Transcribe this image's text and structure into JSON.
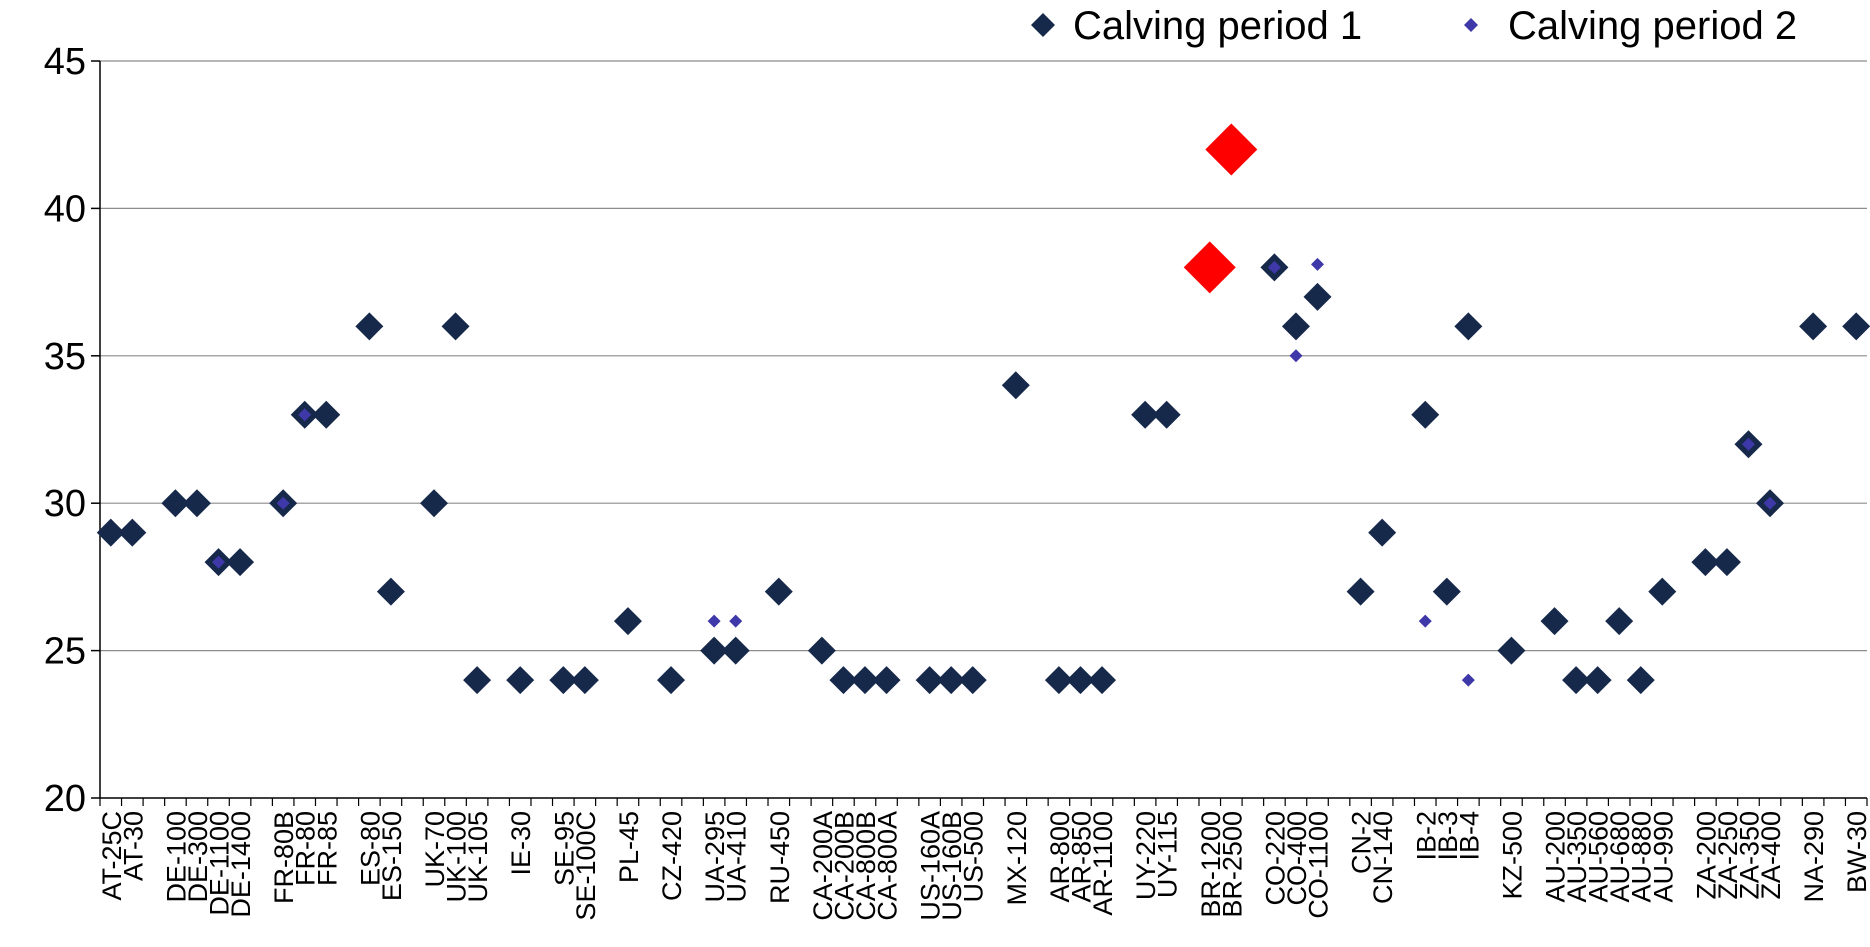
{
  "chart_data": {
    "type": "scatter",
    "ylim": [
      20,
      45
    ],
    "yticks": [
      20,
      25,
      30,
      35,
      40,
      45
    ],
    "grid": true,
    "legend_position": "top-right",
    "categories": [
      "AT-25C",
      "AT-30",
      "",
      "DE-100",
      "DE-300",
      "DE-1100",
      "DE-1400",
      "",
      "FR-80B",
      "FR-80",
      "FR-85",
      "",
      "ES-80",
      "ES-150",
      "",
      "UK-70",
      "UK-100",
      "UK-105",
      "",
      "IE-30",
      "",
      "SE-95",
      "SE-100C",
      "",
      "PL-45",
      "",
      "CZ-420",
      "",
      "UA-295",
      "UA-410",
      "",
      "RU-450",
      "",
      "CA-200A",
      "CA-200B",
      "CA-800B",
      "CA-800A",
      "",
      "US-160A",
      "US-160B",
      "US-500",
      "",
      "MX-120",
      "",
      "AR-800",
      "AR-850",
      "AR-1100",
      "",
      "UY-220",
      "UY-115",
      "",
      "BR-1200",
      "BR-2500",
      "",
      "CO-220",
      "CO-400",
      "CO-1100",
      "",
      "CN-2",
      "CN-140",
      "",
      "IB-2",
      "IB-3",
      "IB-4",
      "",
      "KZ-500",
      "",
      "AU-200",
      "AU-350",
      "AU-560",
      "AU-680",
      "AU-880",
      "AU-990",
      "",
      "ZA-200",
      "ZA-250",
      "ZA-350",
      "ZA-400",
      "",
      "NA-290",
      "",
      "BW-30"
    ],
    "series": [
      {
        "name": "Calving period 1",
        "color": "#17294B",
        "marker": "diamond",
        "values": [
          29,
          29,
          null,
          30,
          30,
          28,
          28,
          null,
          30,
          33,
          33,
          null,
          36,
          27,
          null,
          30,
          36,
          24,
          null,
          24,
          null,
          24,
          24,
          null,
          26,
          null,
          24,
          null,
          25,
          25,
          null,
          27,
          null,
          25,
          24,
          24,
          24,
          null,
          24,
          24,
          24,
          null,
          34,
          null,
          24,
          24,
          24,
          null,
          33,
          33,
          null,
          38,
          42,
          null,
          38,
          36,
          37,
          null,
          27,
          29,
          null,
          33,
          27,
          36,
          null,
          25,
          null,
          26,
          24,
          24,
          26,
          24,
          27,
          null,
          28,
          28,
          32,
          30,
          null,
          36,
          null,
          36
        ]
      },
      {
        "name": "Calving period 2",
        "color": "#3F38A8",
        "marker": "diamond-small",
        "values": [
          null,
          null,
          null,
          null,
          null,
          28,
          null,
          null,
          30,
          33,
          null,
          null,
          null,
          null,
          null,
          null,
          null,
          null,
          null,
          null,
          null,
          null,
          null,
          null,
          null,
          null,
          null,
          null,
          26,
          26,
          null,
          null,
          null,
          null,
          null,
          null,
          null,
          null,
          null,
          null,
          null,
          null,
          null,
          null,
          null,
          null,
          null,
          null,
          null,
          null,
          null,
          null,
          null,
          null,
          38,
          35,
          38.1,
          null,
          null,
          null,
          null,
          26,
          null,
          24,
          null,
          null,
          null,
          null,
          null,
          null,
          null,
          null,
          null,
          null,
          null,
          null,
          32,
          30,
          null,
          null,
          null,
          null
        ]
      }
    ],
    "highlight_points": [
      {
        "category": "BR-1200",
        "value": 38,
        "color": "#FF0000"
      },
      {
        "category": "BR-2500",
        "value": 42,
        "color": "#FF0000"
      }
    ]
  },
  "legend": {
    "items": [
      "Calving period 1",
      "Calving period 2"
    ]
  }
}
